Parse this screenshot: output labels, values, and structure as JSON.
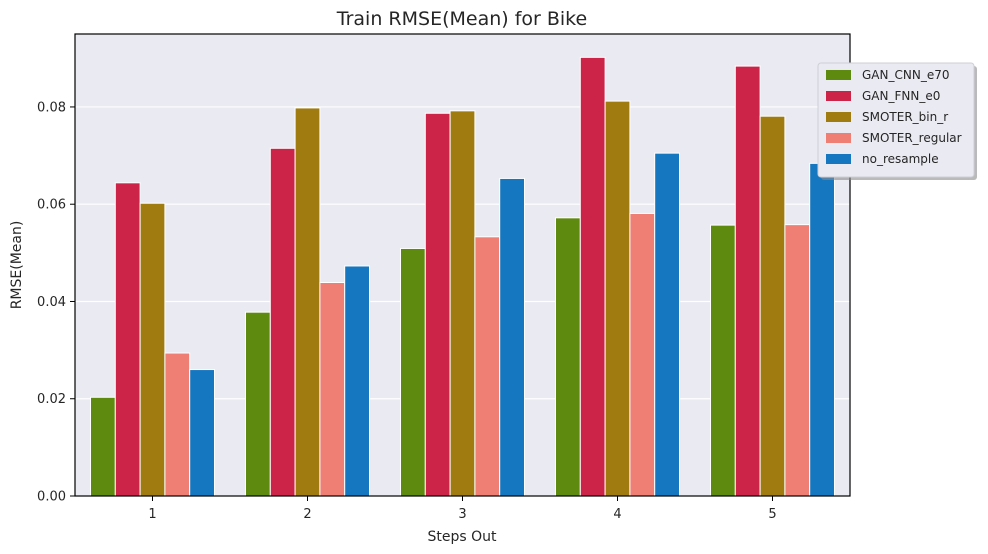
{
  "chart_data": {
    "type": "bar",
    "title": "Train RMSE(Mean) for Bike",
    "xlabel": "Steps Out",
    "ylabel": "RMSE(Mean)",
    "categories": [
      "1",
      "2",
      "3",
      "4",
      "5"
    ],
    "ylim": [
      0,
      0.095
    ],
    "yticks": [
      "0.00",
      "0.02",
      "0.04",
      "0.06",
      "0.08"
    ],
    "grid": true,
    "legend_position": "top-right",
    "series": [
      {
        "name": "GAN_CNN_e70",
        "color": "#5f8a10",
        "values": [
          0.0203,
          0.0378,
          0.0509,
          0.0572,
          0.0557
        ]
      },
      {
        "name": "GAN_FNN_e0",
        "color": "#cc2448",
        "values": [
          0.0644,
          0.0715,
          0.0787,
          0.0902,
          0.0884
        ]
      },
      {
        "name": "SMOTER_bin_r",
        "color": "#a07c10",
        "values": [
          0.0602,
          0.0798,
          0.0792,
          0.0812,
          0.0781
        ]
      },
      {
        "name": "SMOTER_regular",
        "color": "#ef7e74",
        "values": [
          0.0294,
          0.0439,
          0.0533,
          0.0581,
          0.0558
        ]
      },
      {
        "name": "no_resample",
        "color": "#1577c0",
        "values": [
          0.026,
          0.0473,
          0.0653,
          0.0705,
          0.0684
        ]
      }
    ]
  }
}
